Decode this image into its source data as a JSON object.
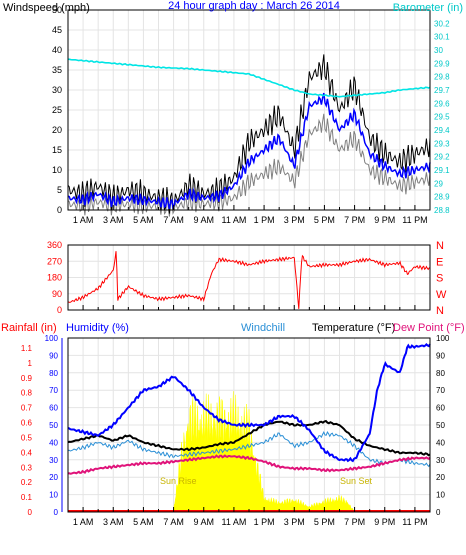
{
  "colors": {
    "background": "#ffffff",
    "panel_frame": "#000000",
    "wind_gust": "#000000",
    "wind_avg": "#0000ff",
    "wind_min": "#808080",
    "barometer": "#00e5e5",
    "wind_direction": "#ff0000",
    "humidity": "#0000ff",
    "windchill": "#2a8fd6",
    "temperature": "#000000",
    "dew_point": "#e0137a",
    "rainfall": "#ff0000",
    "solar": "#ffff00",
    "sun_label": "#c8b400"
  },
  "chart_data": [
    {
      "type": "line",
      "title": "24 hour graph day : March 26 2014",
      "ylabel": "Windspeed (mph)",
      "y2label": "Barometer (in)",
      "ylim": [
        0,
        50
      ],
      "y2lim": [
        28.8,
        30.3
      ],
      "grid": true,
      "x_ticks": [
        "1 AM",
        "3 AM",
        "5 AM",
        "7 AM",
        "9 AM",
        "11 AM",
        "1 PM",
        "3 PM",
        "5 PM",
        "7 PM",
        "9 PM",
        "11 PM"
      ],
      "y_ticks": [
        "0",
        "5",
        "10",
        "15",
        "20",
        "25",
        "30",
        "35",
        "40",
        "45",
        "50"
      ],
      "y2_ticks": [
        "28.8",
        "28.9",
        "29",
        "29.1",
        "29.2",
        "29.3",
        "29.4",
        "29.5",
        "29.6",
        "29.7",
        "29.8",
        "29.9",
        "30",
        "30.1",
        "30.2"
      ],
      "series": [
        {
          "key": "gust",
          "axis": "left",
          "x": [
            0,
            1,
            2,
            3,
            4,
            5,
            6,
            7,
            8,
            9,
            10,
            11,
            12,
            13,
            14,
            15,
            16,
            17,
            18,
            19,
            20,
            21,
            22,
            23,
            24
          ],
          "values": [
            5,
            4,
            6,
            3,
            5,
            4,
            3,
            2,
            6,
            4,
            5,
            8,
            17,
            20,
            24,
            15,
            33,
            36,
            25,
            31,
            18,
            14,
            12,
            14,
            16
          ]
        },
        {
          "key": "avg",
          "axis": "left",
          "x": [
            0,
            1,
            2,
            3,
            4,
            5,
            6,
            7,
            8,
            9,
            10,
            11,
            12,
            13,
            14,
            15,
            16,
            17,
            18,
            19,
            20,
            21,
            22,
            23,
            24
          ],
          "values": [
            3,
            2.5,
            4,
            2,
            3,
            2.5,
            2,
            1.5,
            4,
            3,
            3.5,
            6,
            12,
            15,
            18,
            11,
            26,
            28,
            20,
            24,
            14,
            11,
            9,
            10,
            11
          ]
        },
        {
          "key": "min",
          "axis": "left",
          "x": [
            0,
            1,
            2,
            3,
            4,
            5,
            6,
            7,
            8,
            9,
            10,
            11,
            12,
            13,
            14,
            15,
            16,
            17,
            18,
            19,
            20,
            21,
            22,
            23,
            24
          ],
          "values": [
            1.5,
            1,
            2,
            1,
            1.5,
            1,
            1,
            0.5,
            2,
            1.5,
            2,
            3,
            7,
            9,
            11,
            7,
            19,
            22,
            15,
            18,
            10,
            8,
            6,
            7,
            8
          ]
        },
        {
          "key": "barometer",
          "axis": "right",
          "x": [
            0,
            2,
            4,
            6,
            8,
            10,
            12,
            13,
            14,
            15,
            16,
            17,
            18,
            19,
            20,
            21,
            22,
            23,
            24
          ],
          "values": [
            29.93,
            29.91,
            29.89,
            29.87,
            29.86,
            29.84,
            29.82,
            29.78,
            29.74,
            29.7,
            29.67,
            29.66,
            29.65,
            29.66,
            29.67,
            29.68,
            29.7,
            29.71,
            29.72
          ]
        }
      ]
    },
    {
      "type": "line",
      "y_ticks": [
        "0",
        "90",
        "180",
        "270",
        "360"
      ],
      "y2_ticks": [
        "N",
        "W",
        "S",
        "E",
        "N"
      ],
      "ylim": [
        0,
        360
      ],
      "grid": true,
      "series": [
        {
          "key": "wind_direction",
          "x": [
            0,
            1,
            2,
            3,
            3.2,
            3.3,
            4,
            5,
            6,
            7,
            8,
            9,
            9.5,
            10,
            11,
            12,
            13,
            14,
            15,
            15.3,
            15.5,
            16,
            17,
            18,
            19,
            20,
            21,
            22,
            22.5,
            23,
            24
          ],
          "values": [
            40,
            70,
            120,
            220,
            330,
            60,
            130,
            80,
            60,
            70,
            80,
            60,
            200,
            280,
            270,
            250,
            270,
            280,
            290,
            10,
            300,
            240,
            250,
            250,
            270,
            280,
            250,
            260,
            200,
            240,
            230
          ]
        }
      ]
    },
    {
      "type": "line",
      "y1label": "Rainfall (in)",
      "y2label": "Humidity (%)",
      "labels": [
        "Windchill",
        "Temperature (°F)",
        "Dew Point (°F)"
      ],
      "rain_ticks": [
        "0",
        "0.1",
        "0.2",
        "0.3",
        "0.4",
        "0.5",
        "0.6",
        "0.7",
        "0.8",
        "0.9",
        "1",
        "1.1"
      ],
      "humidity_ticks": [
        "0",
        "10",
        "20",
        "30",
        "40",
        "50",
        "60",
        "70",
        "80",
        "90",
        "100"
      ],
      "temp_ticks": [
        "0",
        "10",
        "20",
        "30",
        "40",
        "50",
        "60",
        "70",
        "80",
        "90",
        "100"
      ],
      "sun_labels": [
        "Sun Rise",
        "Sun Set"
      ],
      "ylim": [
        0,
        100
      ],
      "grid": true,
      "series": [
        {
          "key": "humidity",
          "x": [
            0,
            1,
            2,
            3,
            4,
            5,
            6,
            7,
            8,
            9,
            10,
            11,
            12,
            13,
            14,
            15,
            16,
            17,
            18,
            19,
            20,
            20.5,
            21,
            22,
            22.5,
            23,
            24
          ],
          "values": [
            48,
            46,
            44,
            50,
            60,
            70,
            72,
            78,
            70,
            60,
            53,
            50,
            50,
            50,
            55,
            55,
            47,
            35,
            30,
            30,
            45,
            70,
            85,
            80,
            95,
            95,
            96
          ]
        },
        {
          "key": "temperature",
          "x": [
            0,
            1,
            2,
            3,
            4,
            5,
            6,
            7,
            8,
            9,
            10,
            11,
            12,
            13,
            14,
            15,
            16,
            17,
            18,
            19,
            20,
            21,
            22,
            23,
            24
          ],
          "values": [
            40,
            42,
            44,
            41,
            44,
            40,
            38,
            36,
            36,
            37,
            39,
            40,
            45,
            50,
            52,
            50,
            50,
            52,
            50,
            42,
            38,
            36,
            34,
            34,
            33
          ]
        },
        {
          "key": "windchill",
          "x": [
            0,
            1,
            2,
            3,
            4,
            5,
            6,
            7,
            8,
            9,
            10,
            11,
            12,
            13,
            14,
            15,
            16,
            17,
            18,
            19,
            20,
            21,
            22,
            23,
            24
          ],
          "values": [
            35,
            37,
            40,
            37,
            41,
            36,
            34,
            32,
            33,
            34,
            35,
            36,
            38,
            40,
            45,
            38,
            40,
            45,
            44,
            38,
            30,
            28,
            30,
            28,
            27
          ]
        },
        {
          "key": "dew_point",
          "x": [
            0,
            1,
            2,
            3,
            4,
            5,
            6,
            7,
            8,
            9,
            10,
            11,
            12,
            13,
            14,
            15,
            16,
            17,
            18,
            19,
            20,
            21,
            22,
            23,
            24
          ],
          "values": [
            22,
            23,
            25,
            26,
            27,
            28,
            28,
            29,
            30,
            31,
            32,
            32,
            31,
            29,
            26,
            25,
            25,
            24,
            24,
            25,
            26,
            28,
            30,
            31,
            31
          ]
        },
        {
          "key": "solar",
          "x": [
            7,
            7.5,
            8,
            9,
            10,
            11,
            12,
            13,
            14,
            15,
            16,
            17,
            18,
            18.5,
            19
          ],
          "values": [
            2,
            40,
            70,
            68,
            70,
            70,
            62,
            10,
            7,
            9,
            4,
            8,
            10,
            8,
            0
          ]
        },
        {
          "key": "rainfall",
          "x": [
            0,
            24
          ],
          "values": [
            0,
            0
          ]
        }
      ]
    }
  ]
}
